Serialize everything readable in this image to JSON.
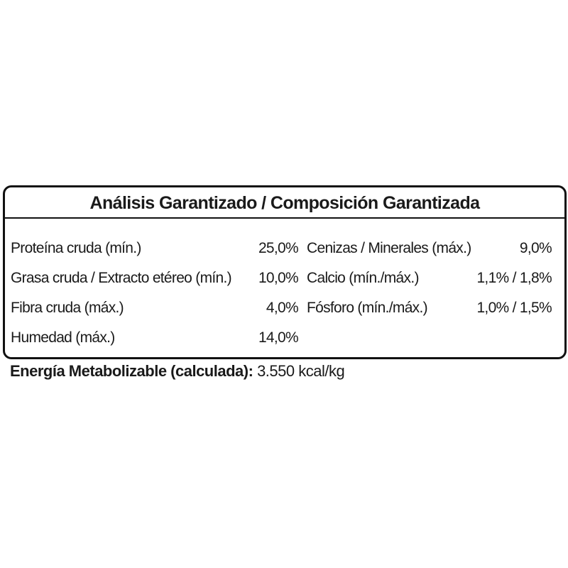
{
  "title": "Análisis Garantizado / Composición Garantizada",
  "left_rows": [
    {
      "label": "Proteína cruda (mín.)",
      "value": "25,0%"
    },
    {
      "label": "Grasa cruda / Extracto etéreo (mín.)",
      "value": "10,0%"
    },
    {
      "label": "Fibra cruda (máx.)",
      "value": "4,0%"
    },
    {
      "label": "Humedad (máx.)",
      "value": "14,0%"
    }
  ],
  "right_rows": [
    {
      "label": "Cenizas / Minerales (máx.)",
      "value": "9,0%"
    },
    {
      "label": "Calcio (mín./máx.)",
      "value": "1,1% / 1,8%"
    },
    {
      "label": "Fósforo (mín./máx.)",
      "value": "1,0% / 1,5%"
    }
  ],
  "energy": {
    "label": "Energía Metabolizable (calculada):",
    "value": "3.550 kcal/kg"
  }
}
